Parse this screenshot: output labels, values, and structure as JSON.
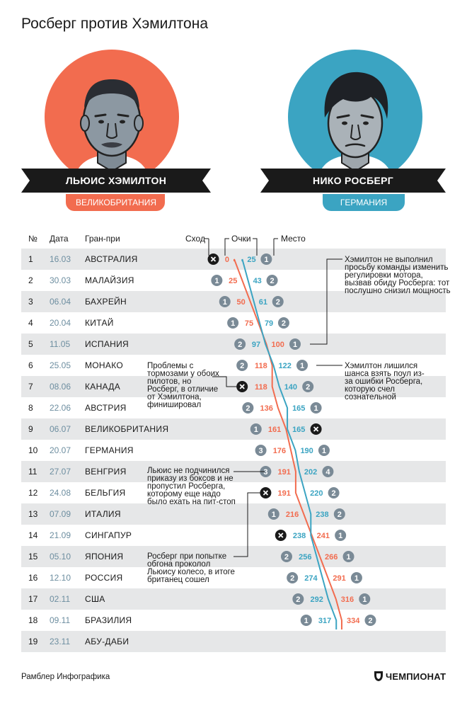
{
  "title": "Росберг против Хэмилтона",
  "drivers": {
    "hamilton": {
      "name": "ЛЬЮИС ХЭМИЛТОН",
      "country": "ВЕЛИКОБРИТАНИЯ",
      "color": "#f26c4f"
    },
    "rosberg": {
      "name": "НИКО РОСБЕРГ",
      "country": "ГЕРМАНИЯ",
      "color": "#3ba4c2"
    }
  },
  "table": {
    "headers": {
      "num": "№",
      "date": "Дата",
      "gp": "Гран-при",
      "dnf": "Сход",
      "points": "Очки",
      "place": "Место"
    }
  },
  "chart_data": {
    "type": "line",
    "title": "Росберг против Хэмилтона",
    "xlabel": "Очки",
    "ylabel": "Гран-при",
    "rows": [
      {
        "num": "1",
        "date": "16.03",
        "gp": "АВСТРАЛИЯ"
      },
      {
        "num": "2",
        "date": "30.03",
        "gp": "МАЛАЙЗИЯ"
      },
      {
        "num": "3",
        "date": "06.04",
        "gp": "БАХРЕЙН"
      },
      {
        "num": "4",
        "date": "20.04",
        "gp": "КИТАЙ"
      },
      {
        "num": "5",
        "date": "11.05",
        "gp": "ИСПАНИЯ"
      },
      {
        "num": "6",
        "date": "25.05",
        "gp": "МОНАКО"
      },
      {
        "num": "7",
        "date": "08.06",
        "gp": "КАНАДА"
      },
      {
        "num": "8",
        "date": "22.06",
        "gp": "АВСТРИЯ"
      },
      {
        "num": "9",
        "date": "06.07",
        "gp": "ВЕЛИКОБРИТАНИЯ"
      },
      {
        "num": "10",
        "date": "20.07",
        "gp": "ГЕРМАНИЯ"
      },
      {
        "num": "11",
        "date": "27.07",
        "gp": "ВЕНГРИЯ"
      },
      {
        "num": "12",
        "date": "24.08",
        "gp": "БЕЛЬГИЯ"
      },
      {
        "num": "13",
        "date": "07.09",
        "gp": "ИТАЛИЯ"
      },
      {
        "num": "14",
        "date": "21.09",
        "gp": "СИНГАПУР"
      },
      {
        "num": "15",
        "date": "05.10",
        "gp": "ЯПОНИЯ"
      },
      {
        "num": "16",
        "date": "12.10",
        "gp": "РОССИЯ"
      },
      {
        "num": "17",
        "date": "02.11",
        "gp": "США"
      },
      {
        "num": "18",
        "date": "09.11",
        "gp": "БРАЗИЛИЯ"
      },
      {
        "num": "19",
        "date": "23.11",
        "gp": "АБУ-ДАБИ"
      }
    ],
    "series": [
      {
        "name": "Хэмилтон",
        "color": "#f26c4f",
        "points": [
          0,
          25,
          50,
          75,
          100,
          118,
          118,
          136,
          161,
          176,
          191,
          191,
          216,
          241,
          266,
          291,
          316,
          334
        ],
        "place": [
          "x",
          "1",
          "1",
          "1",
          "1",
          "2",
          "x",
          "2",
          "1",
          "3",
          "3",
          "x",
          "1",
          "1",
          "1",
          "1",
          "1",
          "2"
        ]
      },
      {
        "name": "Росберг",
        "color": "#3ba4c2",
        "points": [
          25,
          43,
          61,
          79,
          97,
          122,
          140,
          165,
          165,
          190,
          202,
          220,
          238,
          238,
          256,
          274,
          292,
          317
        ],
        "place": [
          "1",
          "2",
          "2",
          "2",
          "2",
          "1",
          "2",
          "1",
          "x",
          "1",
          "4",
          "2",
          "2",
          "x",
          "2",
          "2",
          "2",
          "1"
        ]
      }
    ],
    "annotations": [
      "Хэмилтон не выполнил просьбу команды изменить регулировки мотора, вызвав обиду Росберга: тот послушно снизил мощность",
      "Проблемы с тормозами у обоих пилотов, но Росберг, в отличие от Хэмилтона, финишировал",
      "Хэмилтон лишился шанса взять поул из-за ошибки Росберга, которую счел сознательной",
      "Льюис не подчинился приказу из боксов и не пропустил Росберга, которому еще надо было ехать на пит-стоп",
      "Росберг при попытке обгона проколол Льюису колесо, в итоге британец сошел"
    ]
  },
  "footer": {
    "source": "Рамблер Инфографика",
    "brand": "ЧЕМПИОНАТ"
  }
}
